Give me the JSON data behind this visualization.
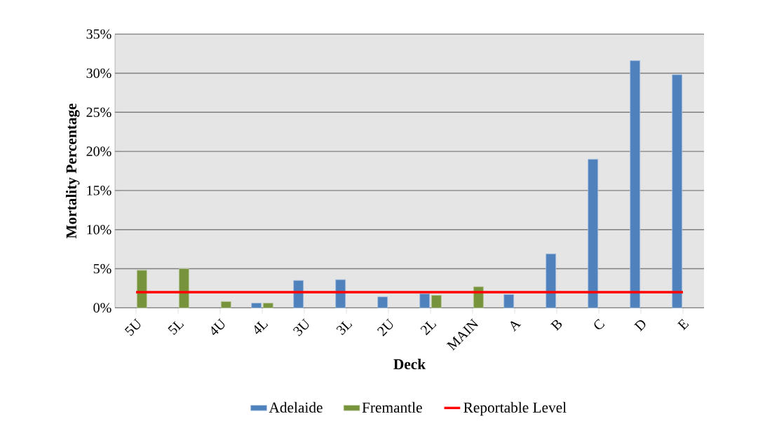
{
  "chart_data": {
    "type": "bar",
    "xlabel": "Deck",
    "ylabel": "Mortality Percentage",
    "categories": [
      "5U",
      "5L",
      "4U",
      "4L",
      "3U",
      "3L",
      "2U",
      "2L",
      "MAIN",
      "A",
      "B",
      "C",
      "D",
      "E"
    ],
    "series": [
      {
        "name": "Adelaide",
        "color": "#4f81bd",
        "values": [
          null,
          null,
          null,
          0.6,
          3.5,
          3.6,
          1.4,
          1.8,
          null,
          1.7,
          6.9,
          19.0,
          31.6,
          29.8
        ]
      },
      {
        "name": "Fremantle",
        "color": "#77933c",
        "values": [
          4.8,
          5.0,
          0.8,
          0.6,
          null,
          null,
          null,
          1.6,
          2.7,
          null,
          null,
          null,
          null,
          null
        ]
      },
      {
        "name": "Reportable Level",
        "type": "line",
        "color": "#ff0000",
        "values": [
          2,
          2,
          2,
          2,
          2,
          2,
          2,
          2,
          2,
          2,
          2,
          2,
          2,
          2
        ]
      }
    ],
    "ylim": [
      0,
      35
    ],
    "yticks": [
      {
        "value": 0,
        "label": "0%"
      },
      {
        "value": 5,
        "label": "5%"
      },
      {
        "value": 10,
        "label": "10%"
      },
      {
        "value": 15,
        "label": "15%"
      },
      {
        "value": 20,
        "label": "20%"
      },
      {
        "value": 25,
        "label": "25%"
      },
      {
        "value": 30,
        "label": "30%"
      },
      {
        "value": 35,
        "label": "35%"
      }
    ],
    "grid": "y",
    "legend": "bottom",
    "marker": "none"
  }
}
